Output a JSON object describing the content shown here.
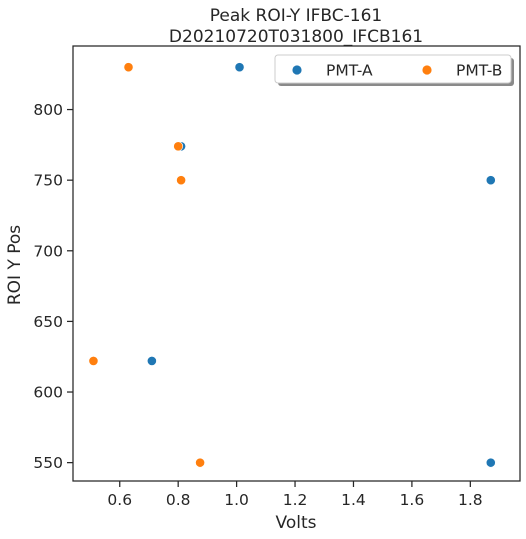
{
  "chart_data": {
    "type": "scatter",
    "title": "Peak ROI-Y IFBC-161",
    "subtitle": "D20210720T031800_IFCB161",
    "xlabel": "Volts",
    "ylabel": "ROI Y Pos",
    "xlim": [
      0.44,
      1.97
    ],
    "ylim": [
      537,
      845
    ],
    "xticks": [
      0.6,
      0.8,
      1.0,
      1.2,
      1.4,
      1.6,
      1.8
    ],
    "xtick_labels": [
      "0.6",
      "0.8",
      "1.0",
      "1.2",
      "1.4",
      "1.6",
      "1.8"
    ],
    "yticks": [
      550,
      600,
      650,
      700,
      750,
      800
    ],
    "ytick_labels": [
      "550",
      "600",
      "650",
      "700",
      "750",
      "800"
    ],
    "grid": false,
    "legend_position": "top-right",
    "series": [
      {
        "name": "PMT-A",
        "color": "#1f77b4",
        "points": [
          {
            "x": 1.01,
            "y": 830
          },
          {
            "x": 0.81,
            "y": 774
          },
          {
            "x": 1.87,
            "y": 750
          },
          {
            "x": 0.71,
            "y": 622
          },
          {
            "x": 1.87,
            "y": 550
          }
        ]
      },
      {
        "name": "PMT-B",
        "color": "#ff7f0e",
        "points": [
          {
            "x": 0.63,
            "y": 830
          },
          {
            "x": 0.8,
            "y": 774
          },
          {
            "x": 0.81,
            "y": 750
          },
          {
            "x": 0.51,
            "y": 622
          },
          {
            "x": 0.875,
            "y": 550
          }
        ]
      }
    ]
  }
}
